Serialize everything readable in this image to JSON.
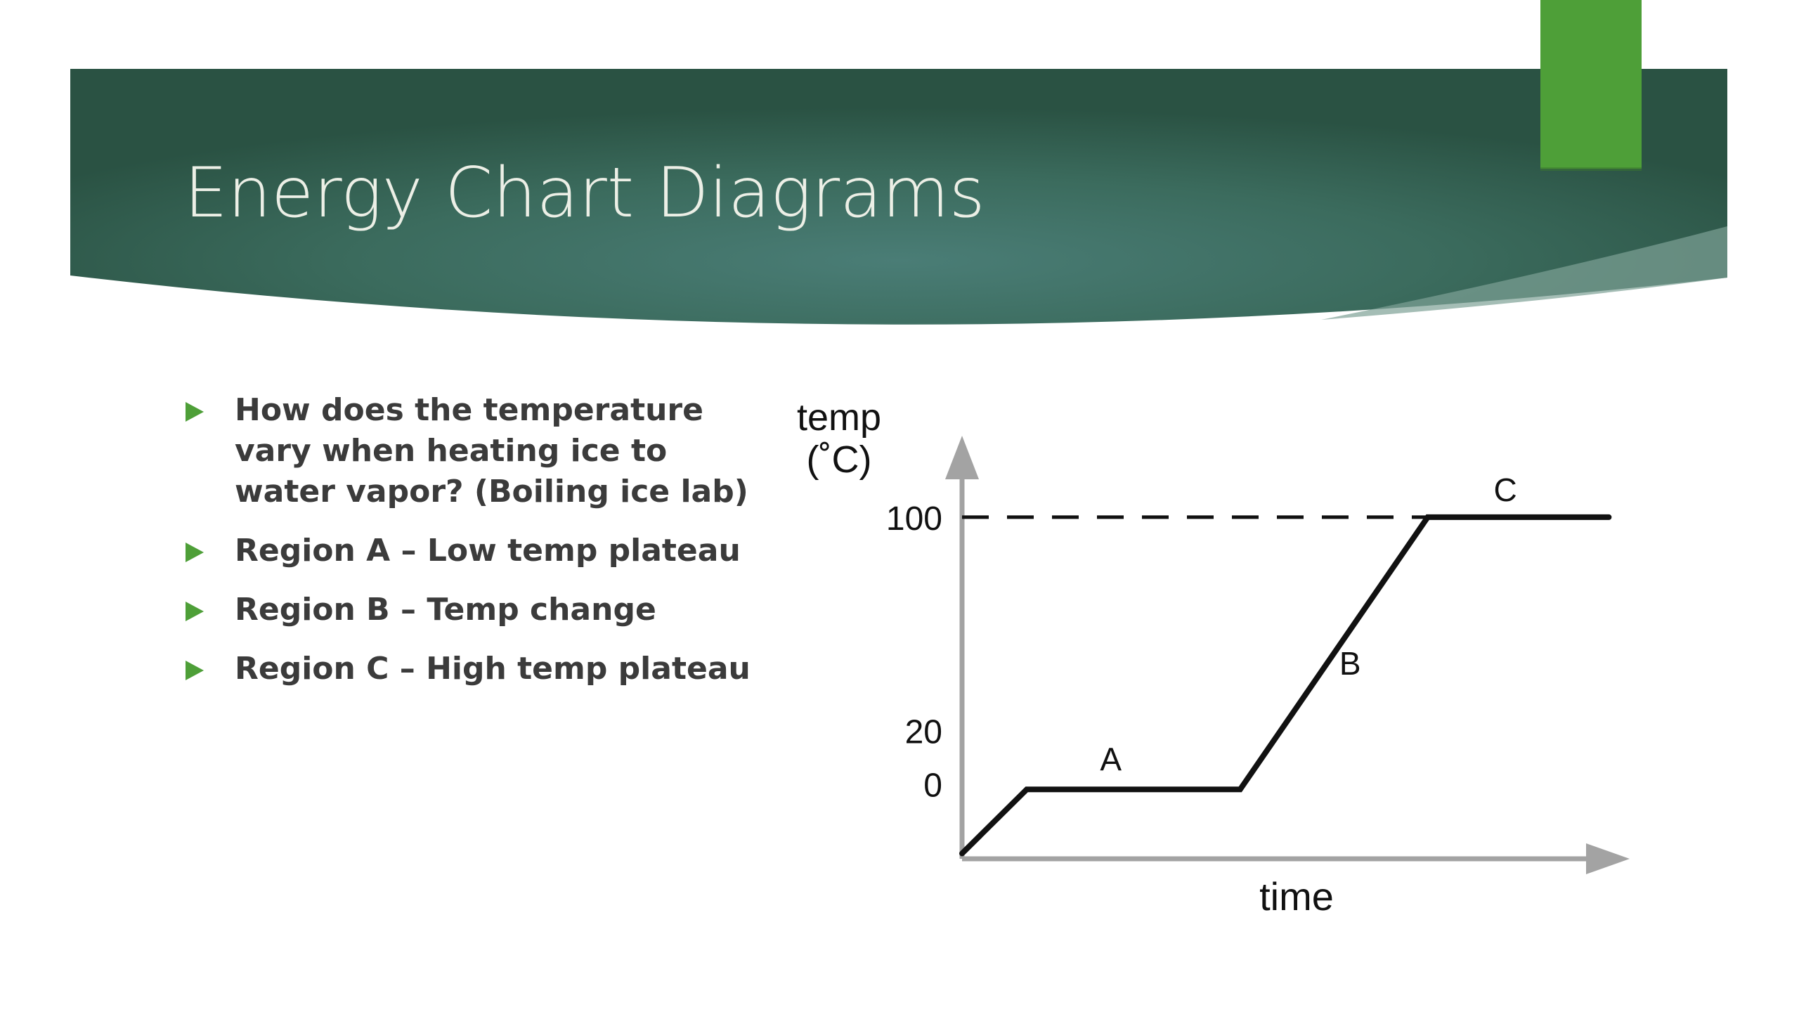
{
  "slide": {
    "title": "Energy Chart Diagrams",
    "accent_color": "#4e9f38",
    "banner_color": "#2f5c4b",
    "bullets": [
      "How does the temperature vary when heating ice to water vapor? (Boiling ice lab)",
      "Region A – Low temp plateau",
      "Region B – Temp change",
      "Region C – High temp plateau"
    ],
    "bullet_icon": "triangle-right-icon"
  },
  "chart_data": {
    "type": "line",
    "xlabel": "time",
    "ylabel_line1": "temp",
    "ylabel_line2": "(˚C)",
    "yticks": [
      {
        "value": 0,
        "label": "0"
      },
      {
        "value": 20,
        "label": "20"
      },
      {
        "value": 100,
        "label": "100"
      }
    ],
    "reference_line": {
      "value": 100,
      "style": "dashed"
    },
    "series": [
      {
        "points": [
          {
            "x": 0,
            "y": -26
          },
          {
            "x": 1,
            "y": -2
          },
          {
            "x": 4.3,
            "y": -2
          },
          {
            "x": 7.2,
            "y": 100
          },
          {
            "x": 10,
            "y": 100
          }
        ]
      }
    ],
    "region_labels": [
      {
        "label": "A",
        "x": 2.3,
        "y": 5
      },
      {
        "label": "B",
        "x": 6,
        "y": 41
      },
      {
        "label": "C",
        "x": 8.4,
        "y": 106
      }
    ],
    "xlim": [
      0,
      10.3
    ],
    "ylim": [
      -28,
      130
    ],
    "axis_color": "#a3a3a3"
  }
}
